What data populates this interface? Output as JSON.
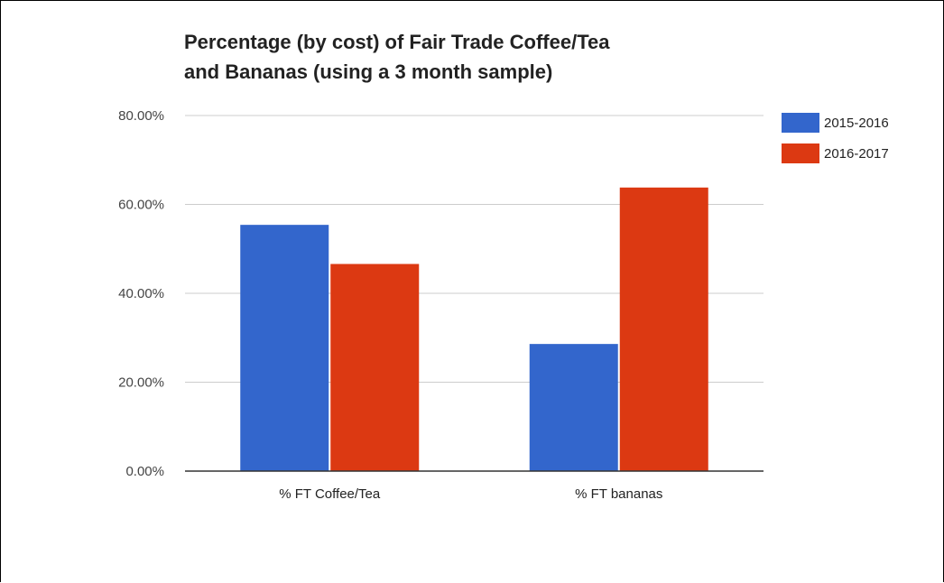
{
  "chart_data": {
    "type": "bar",
    "title_lines": [
      "Percentage (by cost) of Fair Trade Coffee/Tea",
      "and Bananas (using a 3 month sample)"
    ],
    "categories": [
      "% FT Coffee/Tea",
      "% FT bananas"
    ],
    "series": [
      {
        "name": "2015-2016",
        "values": [
          55.4,
          28.6
        ],
        "color": "#3366cc"
      },
      {
        "name": "2016-2017",
        "values": [
          46.6,
          63.8
        ],
        "color": "#dc3912"
      }
    ],
    "yticks": [
      "0.00%",
      "20.00%",
      "40.00%",
      "60.00%",
      "80.00%"
    ],
    "ylim": [
      0,
      80
    ],
    "grid": true,
    "legend_position": "right",
    "xlabel": "",
    "ylabel": ""
  }
}
